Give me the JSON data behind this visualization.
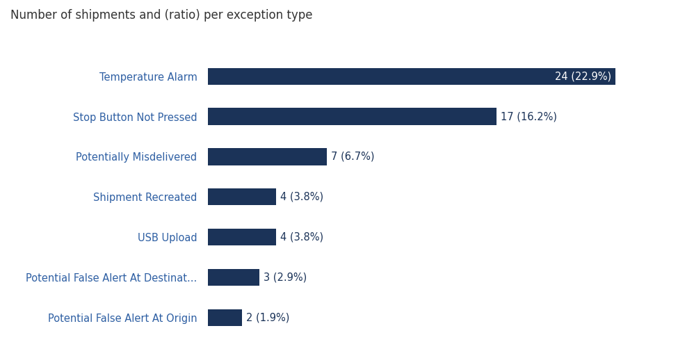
{
  "title": "Number of shipments and (ratio) per exception type",
  "categories": [
    "Potential False Alert At Origin",
    "Potential False Alert At Destinat...",
    "USB Upload",
    "Shipment Recreated",
    "Potentially Misdelivered",
    "Stop Button Not Pressed",
    "Temperature Alarm"
  ],
  "values": [
    2,
    3,
    4,
    4,
    7,
    17,
    24
  ],
  "labels": [
    "2 (1.9%)",
    "3 (2.9%)",
    "4 (3.8%)",
    "4 (3.8%)",
    "7 (6.7%)",
    "17 (16.2%)",
    "24 (22.9%)"
  ],
  "bar_color": "#1b3358",
  "label_color_inside": "#ffffff",
  "label_color_outside": "#1b3358",
  "title_color": "#333333",
  "category_label_color": "#2e5fa3",
  "background_color": "#ffffff",
  "title_fontsize": 12,
  "category_fontsize": 10.5,
  "label_fontsize": 10.5,
  "xlim": [
    0,
    27
  ],
  "inside_threshold": 20,
  "bar_height": 0.42
}
